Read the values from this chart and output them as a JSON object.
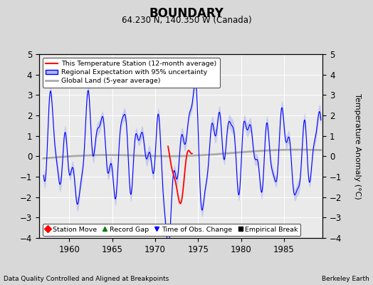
{
  "title": "BOUNDARY",
  "subtitle": "64.230 N, 140.350 W (Canada)",
  "ylabel": "Temperature Anomaly (°C)",
  "xlabel_note": "Data Quality Controlled and Aligned at Breakpoints",
  "xlabel_note2": "Berkeley Earth",
  "xlim": [
    1956.5,
    1989.5
  ],
  "ylim": [
    -4,
    5
  ],
  "yticks": [
    -4,
    -3,
    -2,
    -1,
    0,
    1,
    2,
    3,
    4,
    5
  ],
  "xticks": [
    1960,
    1965,
    1970,
    1975,
    1980,
    1985
  ],
  "bg_color": "#e0e0e0",
  "plot_bg_color": "#e8e8e8",
  "legend1_labels": [
    "This Temperature Station (12-month average)",
    "Regional Expectation with 95% uncertainty",
    "Global Land (5-year average)"
  ],
  "legend2_labels": [
    "Station Move",
    "Record Gap",
    "Time of Obs. Change",
    "Empirical Break"
  ]
}
